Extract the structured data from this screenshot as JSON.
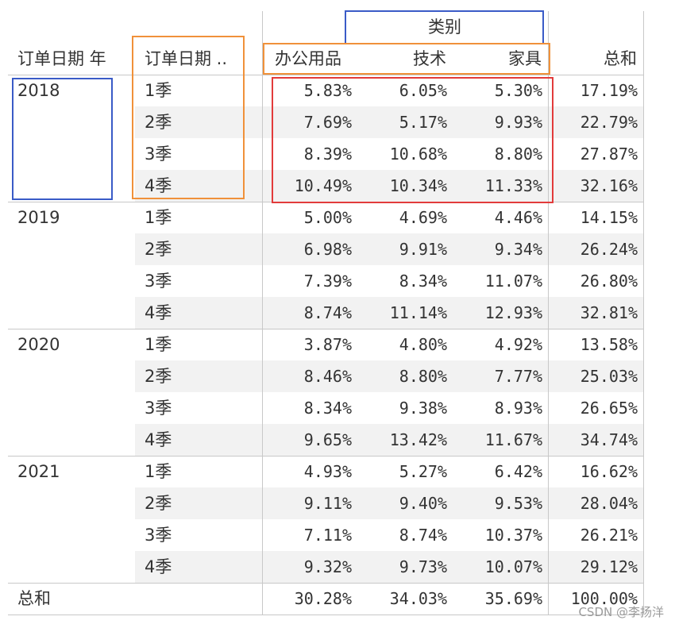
{
  "table": {
    "headers": {
      "year_col": "订单日期 年",
      "quarter_col": "订单日期 ..",
      "category_group": "类别",
      "categories": [
        "办公用品",
        "技术",
        "家具"
      ],
      "total_col": "总和"
    },
    "rows": [
      {
        "year": "2018",
        "quarter": "1季",
        "values": [
          "5.83%",
          "6.05%",
          "5.30%"
        ],
        "total": "17.19%"
      },
      {
        "year": "",
        "quarter": "2季",
        "values": [
          "7.69%",
          "5.17%",
          "9.93%"
        ],
        "total": "22.79%"
      },
      {
        "year": "",
        "quarter": "3季",
        "values": [
          "8.39%",
          "10.68%",
          "8.80%"
        ],
        "total": "27.87%"
      },
      {
        "year": "",
        "quarter": "4季",
        "values": [
          "10.49%",
          "10.34%",
          "11.33%"
        ],
        "total": "32.16%"
      },
      {
        "year": "2019",
        "quarter": "1季",
        "values": [
          "5.00%",
          "4.69%",
          "4.46%"
        ],
        "total": "14.15%"
      },
      {
        "year": "",
        "quarter": "2季",
        "values": [
          "6.98%",
          "9.91%",
          "9.34%"
        ],
        "total": "26.24%"
      },
      {
        "year": "",
        "quarter": "3季",
        "values": [
          "7.39%",
          "8.34%",
          "11.07%"
        ],
        "total": "26.80%"
      },
      {
        "year": "",
        "quarter": "4季",
        "values": [
          "8.74%",
          "11.14%",
          "12.93%"
        ],
        "total": "32.81%"
      },
      {
        "year": "2020",
        "quarter": "1季",
        "values": [
          "3.87%",
          "4.80%",
          "4.92%"
        ],
        "total": "13.58%"
      },
      {
        "year": "",
        "quarter": "2季",
        "values": [
          "8.46%",
          "8.80%",
          "7.77%"
        ],
        "total": "25.03%"
      },
      {
        "year": "",
        "quarter": "3季",
        "values": [
          "8.34%",
          "9.38%",
          "8.93%"
        ],
        "total": "26.65%"
      },
      {
        "year": "",
        "quarter": "4季",
        "values": [
          "9.65%",
          "13.42%",
          "11.67%"
        ],
        "total": "34.74%"
      },
      {
        "year": "2021",
        "quarter": "1季",
        "values": [
          "4.93%",
          "5.27%",
          "6.42%"
        ],
        "total": "16.62%"
      },
      {
        "year": "",
        "quarter": "2季",
        "values": [
          "9.11%",
          "9.40%",
          "9.53%"
        ],
        "total": "28.04%"
      },
      {
        "year": "",
        "quarter": "3季",
        "values": [
          "7.11%",
          "8.74%",
          "10.37%"
        ],
        "total": "26.21%"
      },
      {
        "year": "",
        "quarter": "4季",
        "values": [
          "9.32%",
          "9.73%",
          "10.07%"
        ],
        "total": "29.12%"
      }
    ],
    "grand_total": {
      "label": "总和",
      "values": [
        "30.28%",
        "34.03%",
        "35.69%"
      ],
      "total": "100.00%"
    }
  },
  "chart_data": {
    "type": "table",
    "title": "",
    "column_group": "类别",
    "columns": [
      "订单日期 年",
      "订单日期 ..",
      "办公用品",
      "技术",
      "家具",
      "总和"
    ],
    "series": [
      {
        "name": "办公用品",
        "values": [
          5.83,
          7.69,
          8.39,
          10.49,
          5.0,
          6.98,
          7.39,
          8.74,
          3.87,
          8.46,
          8.34,
          9.65,
          4.93,
          9.11,
          7.11,
          9.32
        ]
      },
      {
        "name": "技术",
        "values": [
          6.05,
          5.17,
          10.68,
          10.34,
          4.69,
          9.91,
          8.34,
          11.14,
          4.8,
          8.8,
          9.38,
          13.42,
          5.27,
          9.4,
          8.74,
          9.73
        ]
      },
      {
        "name": "家具",
        "values": [
          5.3,
          9.93,
          8.8,
          11.33,
          4.46,
          9.34,
          11.07,
          12.93,
          4.92,
          7.77,
          8.93,
          11.67,
          6.42,
          9.53,
          10.37,
          10.07
        ]
      }
    ],
    "row_totals": [
      17.19,
      22.79,
      27.87,
      32.16,
      14.15,
      26.24,
      26.8,
      32.81,
      13.58,
      25.03,
      26.65,
      34.74,
      16.62,
      28.04,
      26.21,
      29.12
    ],
    "column_totals": [
      30.28,
      34.03,
      35.69
    ],
    "grand_total": 100.0,
    "highlight_colors": {
      "blue": "#3a5bc7",
      "orange": "#f0913a",
      "red": "#e23b3b"
    }
  },
  "watermark": "CSDN @李扬洋"
}
